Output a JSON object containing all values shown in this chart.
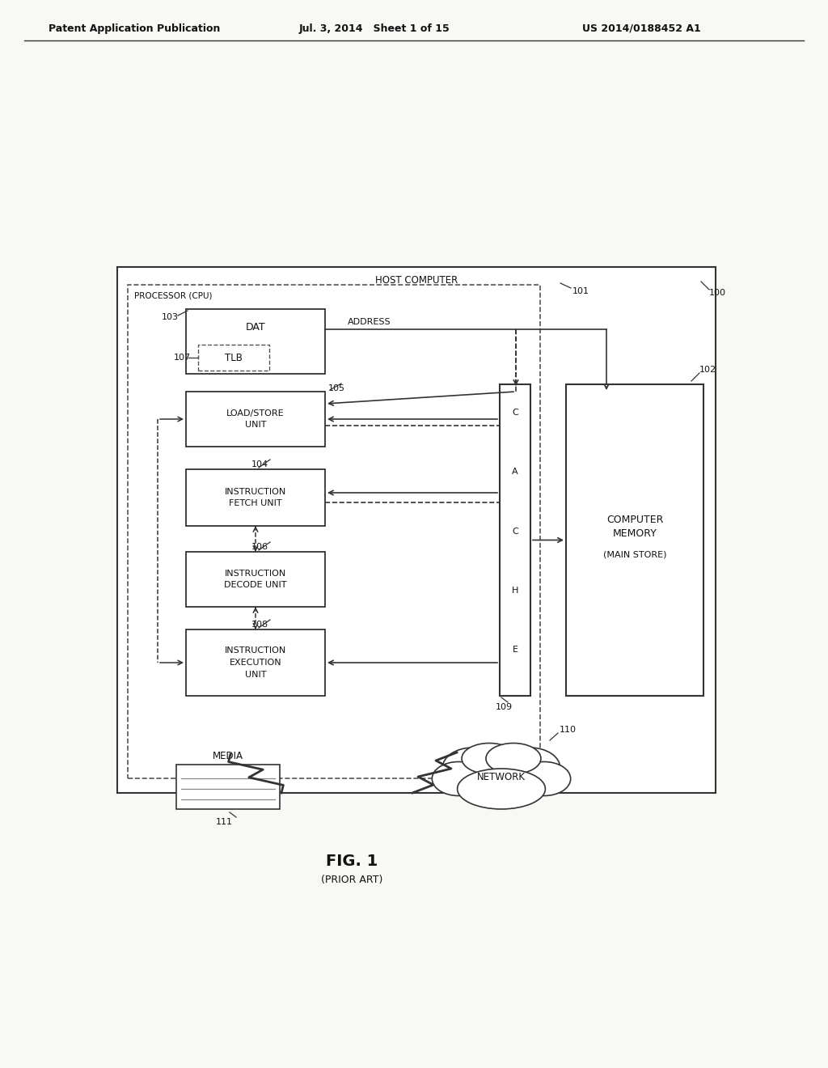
{
  "bg_color": "#f8f8f5",
  "header_text_left": "Patent Application Publication",
  "header_text_mid": "Jul. 3, 2014   Sheet 1 of 15",
  "header_text_right": "US 2014/0188452 A1",
  "fig_label": "FIG. 1",
  "fig_sublabel": "(PRIOR ART)",
  "host_computer_label": "HOST COMPUTER",
  "host_computer_ref": "100",
  "processor_label": "PROCESSOR (CPU)",
  "dat_label": "DAT",
  "dat_ref": "103",
  "tlb_label": "TLB",
  "tlb_ref": "107",
  "address_label": "ADDRESS",
  "cache_ref": "109",
  "load_store_ref": "105",
  "instr_fetch_ref": "104",
  "instr_decode_ref": "106",
  "instr_exec_ref": "108",
  "computer_memory_ref": "102",
  "processor_ref": "101",
  "media_label": "MEDIA",
  "media_ref": "111",
  "network_label": "NETWORK",
  "network_ref": "110",
  "line_color": "#333333",
  "box_color": "#ffffff",
  "text_color": "#111111",
  "dashed_color": "#555555"
}
